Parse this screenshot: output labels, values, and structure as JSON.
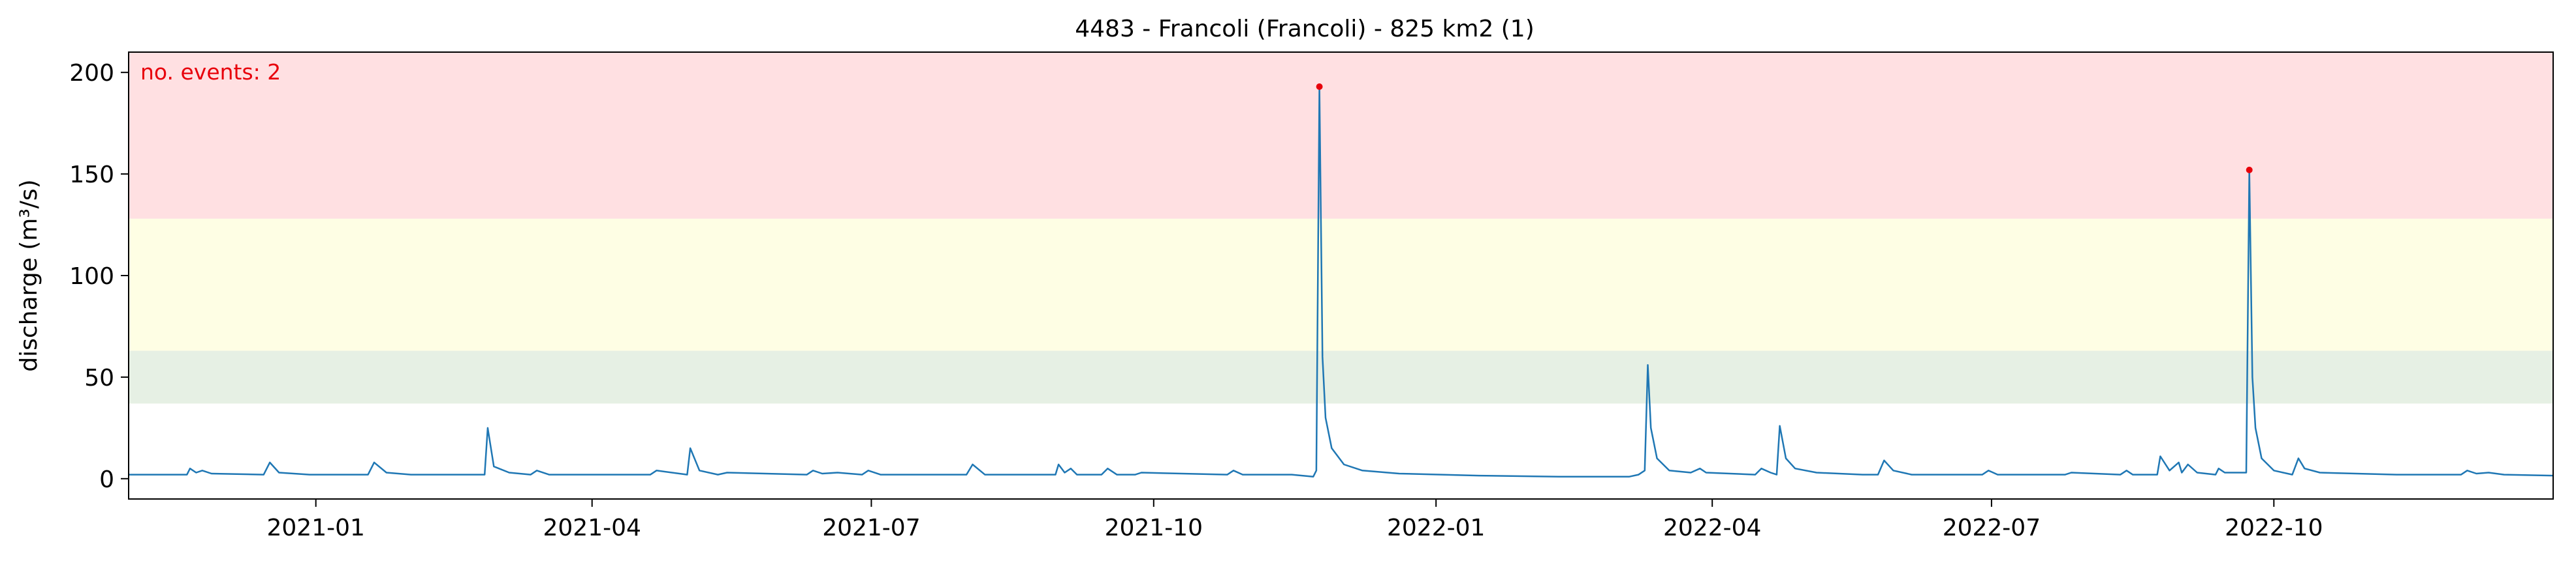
{
  "chart_data": {
    "type": "line",
    "title": "4483 - Francoli (Francoli) - 825 km2 (1)",
    "xlabel": "",
    "ylabel": "discharge (m³/s)",
    "x_axis_type": "date",
    "xlim": [
      "2020-11-01",
      "2022-12-31"
    ],
    "ylim": [
      -10,
      210
    ],
    "x_ticks": [
      "2021-01-01",
      "2021-04-01",
      "2021-07-01",
      "2021-10-01",
      "2022-01-01",
      "2022-04-01",
      "2022-07-01",
      "2022-10-01"
    ],
    "x_tick_labels": [
      "2021-01",
      "2021-04",
      "2021-07",
      "2021-10",
      "2022-01",
      "2022-04",
      "2022-07",
      "2022-10"
    ],
    "y_ticks": [
      0,
      50,
      100,
      150,
      200
    ],
    "y_tick_labels": [
      "0",
      "50",
      "100",
      "150",
      "200"
    ],
    "grid": false,
    "threshold_bands": [
      {
        "name": "band-low",
        "from": 37,
        "to": 63,
        "color": "#e6f0e4"
      },
      {
        "name": "band-mid",
        "from": 63,
        "to": 128,
        "color": "#fefee4"
      },
      {
        "name": "band-high",
        "from": 128,
        "to": 210,
        "color": "#ffe0e2"
      }
    ],
    "annotation": {
      "text": "no. events: 2",
      "color": "#e8000b",
      "position": "top-left"
    },
    "series": [
      {
        "color": "#1f77b4",
        "points": [
          [
            "2020-11-01",
            2
          ],
          [
            "2020-11-20",
            2
          ],
          [
            "2020-11-21",
            5
          ],
          [
            "2020-11-23",
            3
          ],
          [
            "2020-11-25",
            4
          ],
          [
            "2020-11-28",
            2.5
          ],
          [
            "2020-12-15",
            2
          ],
          [
            "2020-12-17",
            8
          ],
          [
            "2020-12-20",
            3
          ],
          [
            "2020-12-30",
            2
          ],
          [
            "2021-01-01",
            2
          ],
          [
            "2021-01-18",
            2
          ],
          [
            "2021-01-20",
            8
          ],
          [
            "2021-01-24",
            3
          ],
          [
            "2021-02-01",
            2
          ],
          [
            "2021-02-25",
            2
          ],
          [
            "2021-02-26",
            25
          ],
          [
            "2021-02-28",
            6
          ],
          [
            "2021-03-05",
            3
          ],
          [
            "2021-03-12",
            2
          ],
          [
            "2021-03-14",
            4
          ],
          [
            "2021-03-18",
            2
          ],
          [
            "2021-04-20",
            2
          ],
          [
            "2021-04-22",
            4
          ],
          [
            "2021-05-02",
            2
          ],
          [
            "2021-05-03",
            15
          ],
          [
            "2021-05-06",
            4
          ],
          [
            "2021-05-12",
            2
          ],
          [
            "2021-05-15",
            3
          ],
          [
            "2021-06-10",
            2
          ],
          [
            "2021-06-12",
            4
          ],
          [
            "2021-06-15",
            2.5
          ],
          [
            "2021-06-20",
            3
          ],
          [
            "2021-06-28",
            2
          ],
          [
            "2021-06-30",
            4
          ],
          [
            "2021-07-04",
            2
          ],
          [
            "2021-08-01",
            2
          ],
          [
            "2021-08-03",
            7
          ],
          [
            "2021-08-07",
            2
          ],
          [
            "2021-08-30",
            2
          ],
          [
            "2021-08-31",
            7
          ],
          [
            "2021-09-02",
            3
          ],
          [
            "2021-09-04",
            5
          ],
          [
            "2021-09-06",
            2
          ],
          [
            "2021-09-14",
            2
          ],
          [
            "2021-09-16",
            5
          ],
          [
            "2021-09-19",
            2
          ],
          [
            "2021-09-25",
            2
          ],
          [
            "2021-09-27",
            3
          ],
          [
            "2021-10-25",
            2
          ],
          [
            "2021-10-27",
            4
          ],
          [
            "2021-10-30",
            2
          ],
          [
            "2021-11-15",
            2
          ],
          [
            "2021-11-22",
            1
          ],
          [
            "2021-11-23",
            4
          ],
          [
            "2021-11-24",
            193
          ],
          [
            "2021-11-25",
            60
          ],
          [
            "2021-11-26",
            30
          ],
          [
            "2021-11-28",
            15
          ],
          [
            "2021-12-02",
            7
          ],
          [
            "2021-12-08",
            4
          ],
          [
            "2021-12-20",
            2.5
          ],
          [
            "2022-01-15",
            1.5
          ],
          [
            "2022-02-10",
            1
          ],
          [
            "2022-03-05",
            1
          ],
          [
            "2022-03-08",
            2
          ],
          [
            "2022-03-10",
            4
          ],
          [
            "2022-03-11",
            56
          ],
          [
            "2022-03-12",
            25
          ],
          [
            "2022-03-14",
            10
          ],
          [
            "2022-03-18",
            4
          ],
          [
            "2022-03-25",
            3
          ],
          [
            "2022-03-28",
            5
          ],
          [
            "2022-03-30",
            3
          ],
          [
            "2022-04-15",
            2
          ],
          [
            "2022-04-17",
            5
          ],
          [
            "2022-04-20",
            3
          ],
          [
            "2022-04-22",
            2
          ],
          [
            "2022-04-23",
            26
          ],
          [
            "2022-04-25",
            10
          ],
          [
            "2022-04-28",
            5
          ],
          [
            "2022-05-05",
            3
          ],
          [
            "2022-05-20",
            2
          ],
          [
            "2022-05-25",
            2
          ],
          [
            "2022-05-27",
            9
          ],
          [
            "2022-05-30",
            4
          ],
          [
            "2022-06-05",
            2
          ],
          [
            "2022-06-28",
            2
          ],
          [
            "2022-06-30",
            4
          ],
          [
            "2022-07-03",
            2
          ],
          [
            "2022-07-25",
            2
          ],
          [
            "2022-07-27",
            3
          ],
          [
            "2022-08-12",
            2
          ],
          [
            "2022-08-14",
            4
          ],
          [
            "2022-08-16",
            2
          ],
          [
            "2022-08-24",
            2
          ],
          [
            "2022-08-25",
            11
          ],
          [
            "2022-08-28",
            4
          ],
          [
            "2022-08-31",
            8
          ],
          [
            "2022-09-01",
            3
          ],
          [
            "2022-09-03",
            7
          ],
          [
            "2022-09-06",
            3
          ],
          [
            "2022-09-12",
            2
          ],
          [
            "2022-09-13",
            5
          ],
          [
            "2022-09-15",
            3
          ],
          [
            "2022-09-22",
            3
          ],
          [
            "2022-09-23",
            152
          ],
          [
            "2022-09-24",
            50
          ],
          [
            "2022-09-25",
            25
          ],
          [
            "2022-09-27",
            10
          ],
          [
            "2022-10-01",
            4
          ],
          [
            "2022-10-07",
            2
          ],
          [
            "2022-10-09",
            10
          ],
          [
            "2022-10-11",
            5
          ],
          [
            "2022-10-16",
            3
          ],
          [
            "2022-11-10",
            2
          ],
          [
            "2022-12-01",
            2
          ],
          [
            "2022-12-03",
            4
          ],
          [
            "2022-12-06",
            2.5
          ],
          [
            "2022-12-10",
            3
          ],
          [
            "2022-12-15",
            2
          ],
          [
            "2022-12-31",
            1.5
          ]
        ]
      }
    ],
    "event_markers": [
      {
        "x": "2021-11-24",
        "y": 193,
        "color": "#e8000b"
      },
      {
        "x": "2022-09-23",
        "y": 152,
        "color": "#e8000b"
      }
    ]
  }
}
